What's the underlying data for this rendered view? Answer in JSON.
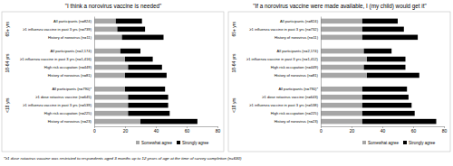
{
  "chart_data": [
    {
      "type": "bar",
      "orientation": "horizontal",
      "stacked": true,
      "legend": "bottom",
      "title": "\"I think a norovirus vaccine is needed\"",
      "categories": [
        "All participants (n=824)",
        "≥1 influenza vaccine in past 3 yrs (n=739)",
        "History of norovirus (n=11)",
        "All participants (n=2,174)",
        "≥1 influenza vaccine in past 3 yrs (n=1,416)",
        "High risk occupation (n=449)",
        "History of norovirus (n=81)",
        "All participants (n=790)*",
        "≥1 dose rotavirus vaccine (n=645)",
        "≥1 influenza vaccine in past 3 yrs (n=539)",
        "High risk occupation (n=225)",
        "History of norovirus (n=23)"
      ],
      "category_groups": [
        "65+ yrs",
        "65+ yrs",
        "65+ yrs",
        "18-64 yrs",
        "18-64 yrs",
        "18-64 yrs",
        "18-64 yrs",
        "<18 yrs",
        "<18 yrs",
        "<18 yrs",
        "<18 yrs",
        "<18 yrs"
      ],
      "series": [
        {
          "name": "Somewhat agree",
          "color": "#a6a6a6",
          "values": [
            14,
            15,
            18,
            17,
            20,
            22,
            20,
            20,
            22,
            22,
            22,
            30
          ]
        },
        {
          "name": "Strongly agree",
          "color": "#000000",
          "values": [
            17,
            18,
            27,
            13,
            18,
            22,
            27,
            26,
            26,
            26,
            27,
            37
          ]
        }
      ],
      "xlim": [
        0,
        80
      ],
      "xticks": [
        0,
        20,
        40,
        60,
        80
      ],
      "annotations": [
        "*≥1 dose rotavirus vaccine was restricted to respondents aged 3 months up to 12 years of age at the time of survey completion (n=630)"
      ]
    },
    {
      "type": "bar",
      "orientation": "horizontal",
      "stacked": true,
      "legend": "bottom",
      "title": "\"If a norovirus vaccine were made available, I (my child) would get it\"",
      "categories": [
        "All participants (n=824)",
        "≥1 influenza vaccine in past 3 yrs (n=732)",
        "History of norovirus (n=11)",
        "All participants (n=2,174)",
        "≥1 influenza vaccine in past 3 yrs (n=1,412)",
        "High risk occupation (n=449)",
        "History of norovirus (n=81)",
        "All participants (n=790)*",
        "≥1 dose rotavirus vaccine (n=643)",
        "≥1 influenza vaccine in past 3 yrs (n=538)",
        "High risk occupation (n=225)",
        "History of norovirus (n=23)"
      ],
      "category_groups": [
        "65+ yrs",
        "65+ yrs",
        "65+ yrs",
        "18-64 yrs",
        "18-64 yrs",
        "18-64 yrs",
        "18-64 yrs",
        "<18 yrs",
        "<18 yrs",
        "<18 yrs",
        "<18 yrs",
        "<18 yrs"
      ],
      "series": [
        {
          "name": "Somewhat agree",
          "color": "#a6a6a6",
          "values": [
            27,
            27,
            27,
            28,
            30,
            28,
            30,
            27,
            27,
            27,
            27,
            27
          ]
        },
        {
          "name": "Strongly agree",
          "color": "#000000",
          "values": [
            23,
            27,
            36,
            18,
            25,
            27,
            34,
            29,
            30,
            32,
            34,
            48
          ]
        }
      ],
      "xlim": [
        0,
        80
      ],
      "xticks": [
        0,
        20,
        40,
        60,
        80
      ]
    }
  ]
}
